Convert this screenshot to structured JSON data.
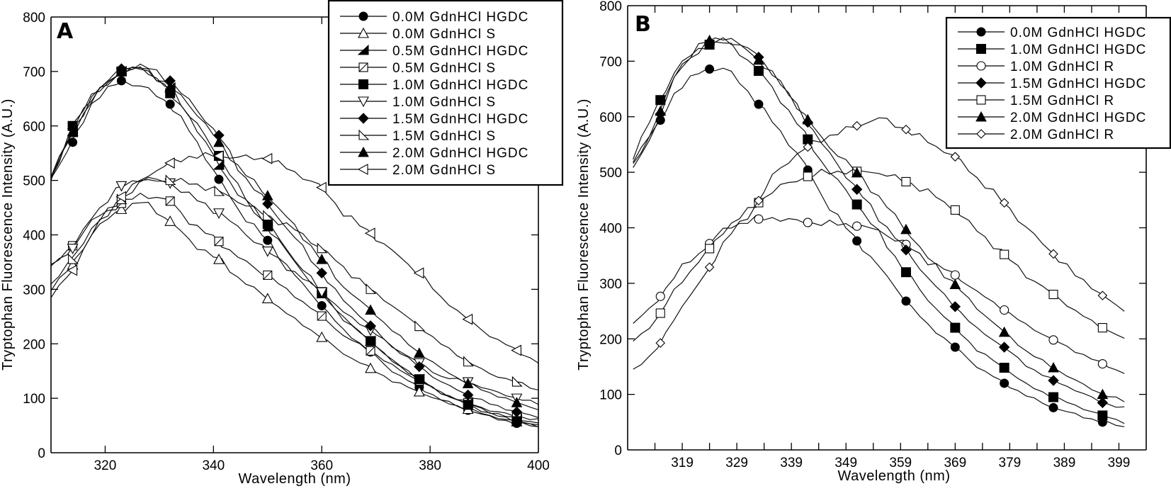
{
  "chart_data": [
    {
      "type": "line",
      "panel_label": "A",
      "title": "",
      "xlabel": "Wavelength (nm)",
      "ylabel": "Tryptophan Fluorescence Intensity (A.U.)",
      "xlim": [
        310,
        400
      ],
      "ylim": [
        0,
        800
      ],
      "xticks": [
        320,
        340,
        360,
        380,
        400
      ],
      "yticks": [
        0,
        100,
        200,
        300,
        400,
        500,
        600,
        700,
        800
      ],
      "grid": false,
      "legend_position": "top-right",
      "x": [
        310,
        314,
        318,
        323,
        327,
        332,
        336,
        341,
        345,
        350,
        355,
        360,
        364,
        369,
        373,
        378,
        382,
        387,
        391,
        396,
        400
      ],
      "series": [
        {
          "name": "0.0M  GdnHCl  HGDC",
          "marker": "filled-circle",
          "values": [
            505,
            570,
            650,
            683,
            672,
            640,
            585,
            502,
            440,
            390,
            325,
            270,
            225,
            185,
            150,
            120,
            98,
            78,
            66,
            54,
            48
          ]
        },
        {
          "name": "0.0M  GdnHCl  S",
          "marker": "open-triangle-up",
          "values": [
            300,
            345,
            410,
            447,
            462,
            425,
            385,
            355,
            318,
            283,
            245,
            212,
            182,
            155,
            132,
            112,
            95,
            80,
            68,
            57,
            50
          ]
        },
        {
          "name": "0.5M  GdnHCl  HGDC",
          "marker": "half-filled-triangle",
          "values": [
            505,
            588,
            655,
            700,
            705,
            670,
            610,
            528,
            470,
            415,
            350,
            292,
            245,
            205,
            170,
            135,
            110,
            90,
            75,
            62,
            55
          ]
        },
        {
          "name": "0.5M  GdnHCl  S",
          "marker": "slashed-square",
          "values": [
            340,
            380,
            430,
            458,
            475,
            462,
            420,
            388,
            355,
            326,
            288,
            251,
            215,
            187,
            160,
            132,
            110,
            92,
            78,
            67,
            60
          ]
        },
        {
          "name": "1.0M  GdnHCl  HGDC",
          "marker": "filled-square",
          "values": [
            505,
            600,
            660,
            700,
            710,
            660,
            615,
            545,
            480,
            420,
            355,
            295,
            248,
            205,
            168,
            135,
            110,
            88,
            72,
            58,
            50
          ]
        },
        {
          "name": "1.0M  GdnHCl  S",
          "marker": "open-triangle-down",
          "values": [
            345,
            375,
            440,
            490,
            505,
            495,
            470,
            440,
            410,
            370,
            330,
            295,
            258,
            225,
            195,
            165,
            140,
            130,
            115,
            100,
            90
          ]
        },
        {
          "name": "1.5M  GdnHCl  HGDC",
          "marker": "filled-diamond",
          "values": [
            505,
            595,
            660,
            705,
            712,
            683,
            640,
            583,
            515,
            457,
            395,
            330,
            280,
            233,
            195,
            158,
            130,
            106,
            90,
            75,
            65
          ]
        },
        {
          "name": "1.5M  GdnHCl  S",
          "marker": "open-triangle-right",
          "values": [
            310,
            355,
            420,
            465,
            500,
            500,
            495,
            480,
            460,
            435,
            410,
            375,
            340,
            300,
            270,
            232,
            200,
            167,
            145,
            130,
            115
          ]
        },
        {
          "name": "2.0M  GdnHCl  HGDC",
          "marker": "filled-triangle-up",
          "values": [
            505,
            590,
            660,
            700,
            708,
            672,
            635,
            570,
            520,
            472,
            415,
            355,
            305,
            262,
            225,
            183,
            155,
            127,
            110,
            92,
            80
          ]
        },
        {
          "name": "2.0M  GdnHCl  S",
          "marker": "open-triangle-left",
          "values": [
            285,
            335,
            410,
            470,
            505,
            532,
            545,
            545,
            542,
            540,
            515,
            487,
            440,
            403,
            370,
            330,
            285,
            245,
            215,
            188,
            165
          ]
        }
      ],
      "marker_x": [
        314,
        323,
        332,
        341,
        350,
        360,
        369,
        378,
        387,
        396
      ]
    },
    {
      "type": "line",
      "panel_label": "B",
      "title": "",
      "xlabel": "Wavelength (nm)",
      "ylabel": "Tryptophan Fluorescence Intensity (A.U.)",
      "xlim": [
        309,
        404
      ],
      "ylim": [
        0,
        800
      ],
      "xticks": [
        314,
        319,
        324,
        329,
        334,
        339,
        344,
        349,
        354,
        359,
        364,
        369,
        374,
        379,
        384,
        389,
        394,
        399
      ],
      "xtick_labels": [
        "",
        "319",
        "",
        "329",
        "",
        "339",
        "",
        "349",
        "",
        "359",
        "",
        "369",
        "",
        "379",
        "",
        "389",
        "",
        "399"
      ],
      "yticks": [
        0,
        100,
        200,
        300,
        400,
        500,
        600,
        700,
        800
      ],
      "grid": false,
      "legend_position": "top-right",
      "x": [
        310,
        314,
        318,
        323,
        327,
        332,
        336,
        341,
        345,
        350,
        355,
        360,
        364,
        369,
        373,
        378,
        382,
        387,
        391,
        396,
        400
      ],
      "series": [
        {
          "name": "0.0M  GdnHCl  HGDC",
          "marker": "filled-circle",
          "values": [
            510,
            575,
            650,
            685,
            688,
            635,
            585,
            522,
            450,
            388,
            330,
            268,
            225,
            185,
            150,
            120,
            98,
            76,
            64,
            50,
            42
          ]
        },
        {
          "name": "1.0M  GdnHCl  HGDC",
          "marker": "filled-square",
          "values": [
            530,
            610,
            690,
            728,
            735,
            695,
            645,
            575,
            512,
            455,
            390,
            320,
            270,
            220,
            180,
            148,
            118,
            95,
            80,
            62,
            50
          ]
        },
        {
          "name": "1.0M  GdnHCl  R",
          "marker": "open-circle",
          "values": [
            228,
            262,
            320,
            362,
            400,
            415,
            418,
            410,
            408,
            405,
            395,
            370,
            340,
            315,
            285,
            252,
            225,
            198,
            178,
            155,
            138
          ]
        },
        {
          "name": "1.5M  GdnHCl  HGDC",
          "marker": "filled-diamond",
          "values": [
            510,
            580,
            680,
            730,
            740,
            718,
            675,
            605,
            545,
            482,
            418,
            360,
            310,
            258,
            218,
            185,
            152,
            125,
            108,
            85,
            75
          ]
        },
        {
          "name": "1.5M  GdnHCl  R",
          "marker": "open-square",
          "values": [
            195,
            230,
            295,
            350,
            400,
            437,
            470,
            490,
            500,
            502,
            500,
            483,
            465,
            432,
            395,
            352,
            315,
            280,
            250,
            220,
            200
          ]
        },
        {
          "name": "2.0M  GdnHCl  HGDC",
          "marker": "filled-triangle-up",
          "values": [
            520,
            585,
            685,
            735,
            745,
            712,
            672,
            608,
            555,
            510,
            455,
            397,
            345,
            298,
            255,
            212,
            178,
            148,
            125,
            100,
            88
          ]
        },
        {
          "name": "2.0M  GdnHCl  R",
          "marker": "open-diamond",
          "values": [
            145,
            175,
            245,
            312,
            380,
            432,
            500,
            540,
            562,
            580,
            598,
            577,
            555,
            528,
            490,
            445,
            400,
            353,
            315,
            278,
            250
          ]
        }
      ],
      "marker_x": [
        315,
        324,
        333,
        342,
        351,
        360,
        369,
        378,
        387,
        396
      ]
    }
  ]
}
